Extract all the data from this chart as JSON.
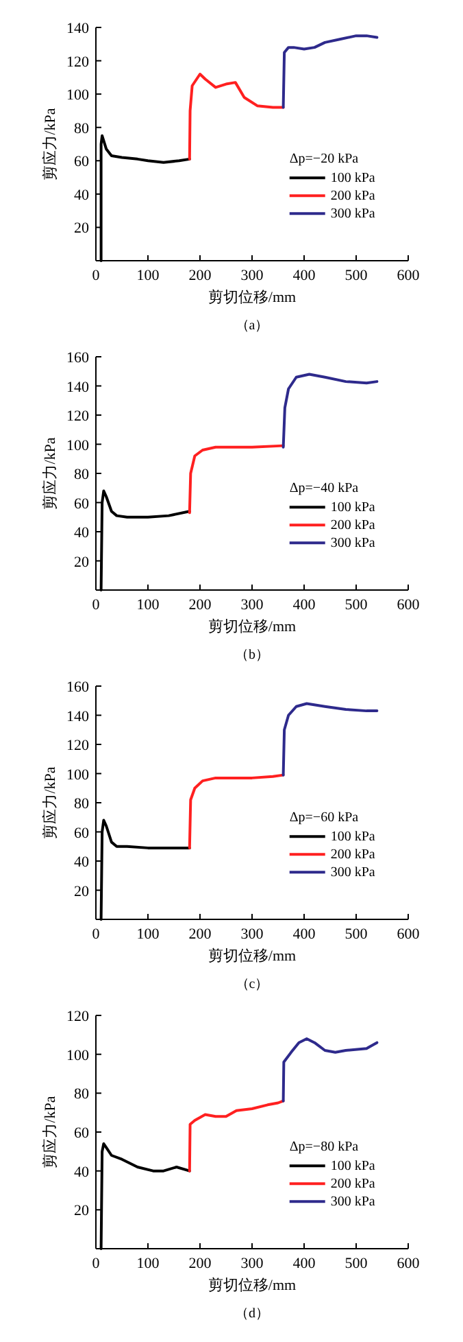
{
  "chart_data": [
    {
      "type": "line",
      "xlabel": "剪切位移/mm",
      "ylabel": "剪应力/kPa",
      "legend_title": "Δp=−20 kPa",
      "legend": "right",
      "annotations": [
        "（a）"
      ],
      "xlim": [
        0,
        600
      ],
      "ylim": [
        0,
        140
      ],
      "xticks": [
        0,
        100,
        200,
        300,
        400,
        500,
        600
      ],
      "yticks": [
        20,
        40,
        60,
        80,
        100,
        120,
        140
      ],
      "series": [
        {
          "name": "100 kPa",
          "color": "#000000",
          "x": [
            10,
            10,
            12,
            15,
            20,
            30,
            50,
            80,
            100,
            130,
            160,
            180
          ],
          "values": [
            0,
            70,
            75,
            72,
            67,
            63,
            62,
            61,
            60,
            59,
            60,
            61
          ]
        },
        {
          "name": "200 kPa",
          "color": "#ff2020",
          "x": [
            180,
            181,
            185,
            200,
            210,
            230,
            250,
            268,
            285,
            310,
            340,
            360
          ],
          "values": [
            61,
            90,
            105,
            112,
            109,
            104,
            106,
            107,
            98,
            93,
            92,
            92
          ]
        },
        {
          "name": "300 kPa",
          "color": "#2e2a8c",
          "x": [
            360,
            362,
            370,
            380,
            400,
            420,
            440,
            470,
            500,
            520,
            540
          ],
          "values": [
            92,
            125,
            128,
            128,
            127,
            128,
            131,
            133,
            135,
            135,
            134
          ]
        }
      ]
    },
    {
      "type": "line",
      "xlabel": "剪切位移/mm",
      "ylabel": "剪应力/kPa",
      "legend_title": "Δp=−40 kPa",
      "legend": "right",
      "annotations": [
        "（b）"
      ],
      "xlim": [
        0,
        600
      ],
      "ylim": [
        0,
        160
      ],
      "xticks": [
        0,
        100,
        200,
        300,
        400,
        500,
        600
      ],
      "yticks": [
        20,
        40,
        60,
        80,
        100,
        120,
        140,
        160
      ],
      "series": [
        {
          "name": "100 kPa",
          "color": "#000000",
          "x": [
            10,
            12,
            15,
            20,
            30,
            40,
            60,
            100,
            140,
            180
          ],
          "values": [
            0,
            60,
            68,
            64,
            54,
            51,
            50,
            50,
            51,
            54
          ]
        },
        {
          "name": "200 kPa",
          "color": "#ff2020",
          "x": [
            180,
            182,
            190,
            205,
            230,
            300,
            360
          ],
          "values": [
            53,
            80,
            92,
            96,
            98,
            98,
            99
          ]
        },
        {
          "name": "300 kPa",
          "color": "#2e2a8c",
          "x": [
            360,
            363,
            370,
            385,
            410,
            440,
            480,
            520,
            540
          ],
          "values": [
            98,
            125,
            138,
            146,
            148,
            146,
            143,
            142,
            143
          ]
        }
      ]
    },
    {
      "type": "line",
      "xlabel": "剪切位移/mm",
      "ylabel": "剪应力/kPa",
      "legend_title": "Δp=−60 kPa",
      "legend": "right",
      "annotations": [
        "（c）"
      ],
      "xlim": [
        0,
        600
      ],
      "ylim": [
        0,
        160
      ],
      "xticks": [
        0,
        100,
        200,
        300,
        400,
        500,
        600
      ],
      "yticks": [
        20,
        40,
        60,
        80,
        100,
        120,
        140,
        160
      ],
      "series": [
        {
          "name": "100 kPa",
          "color": "#000000",
          "x": [
            10,
            12,
            15,
            20,
            30,
            40,
            60,
            100,
            180
          ],
          "values": [
            0,
            60,
            68,
            64,
            53,
            50,
            50,
            49,
            49
          ]
        },
        {
          "name": "200 kPa",
          "color": "#ff2020",
          "x": [
            180,
            182,
            190,
            205,
            230,
            300,
            340,
            360
          ],
          "values": [
            49,
            82,
            90,
            95,
            97,
            97,
            98,
            99
          ]
        },
        {
          "name": "300 kPa",
          "color": "#2e2a8c",
          "x": [
            360,
            362,
            370,
            385,
            405,
            440,
            480,
            520,
            540
          ],
          "values": [
            99,
            130,
            140,
            146,
            148,
            146,
            144,
            143,
            143
          ]
        }
      ]
    },
    {
      "type": "line",
      "xlabel": "剪切位移/mm",
      "ylabel": "剪应力/kPa",
      "legend_title": "Δp=−80 kPa",
      "legend": "right",
      "annotations": [
        "（d）"
      ],
      "xlim": [
        0,
        600
      ],
      "ylim": [
        0,
        120
      ],
      "xticks": [
        0,
        100,
        200,
        300,
        400,
        500,
        600
      ],
      "yticks": [
        20,
        40,
        60,
        80,
        100,
        120
      ],
      "series": [
        {
          "name": "100 kPa",
          "color": "#000000",
          "x": [
            10,
            12,
            15,
            20,
            30,
            50,
            80,
            110,
            130,
            155,
            180
          ],
          "values": [
            0,
            50,
            54,
            52,
            48,
            46,
            42,
            40,
            40,
            42,
            40
          ]
        },
        {
          "name": "200 kPa",
          "color": "#ff2020",
          "x": [
            180,
            181,
            190,
            210,
            230,
            250,
            270,
            300,
            330,
            350,
            360
          ],
          "values": [
            40,
            64,
            66,
            69,
            68,
            68,
            71,
            72,
            74,
            75,
            76
          ]
        },
        {
          "name": "300 kPa",
          "color": "#2e2a8c",
          "x": [
            360,
            361,
            375,
            390,
            405,
            420,
            440,
            460,
            480,
            520,
            540
          ],
          "values": [
            76,
            96,
            101,
            106,
            108,
            106,
            102,
            101,
            102,
            103,
            106
          ]
        }
      ]
    }
  ]
}
